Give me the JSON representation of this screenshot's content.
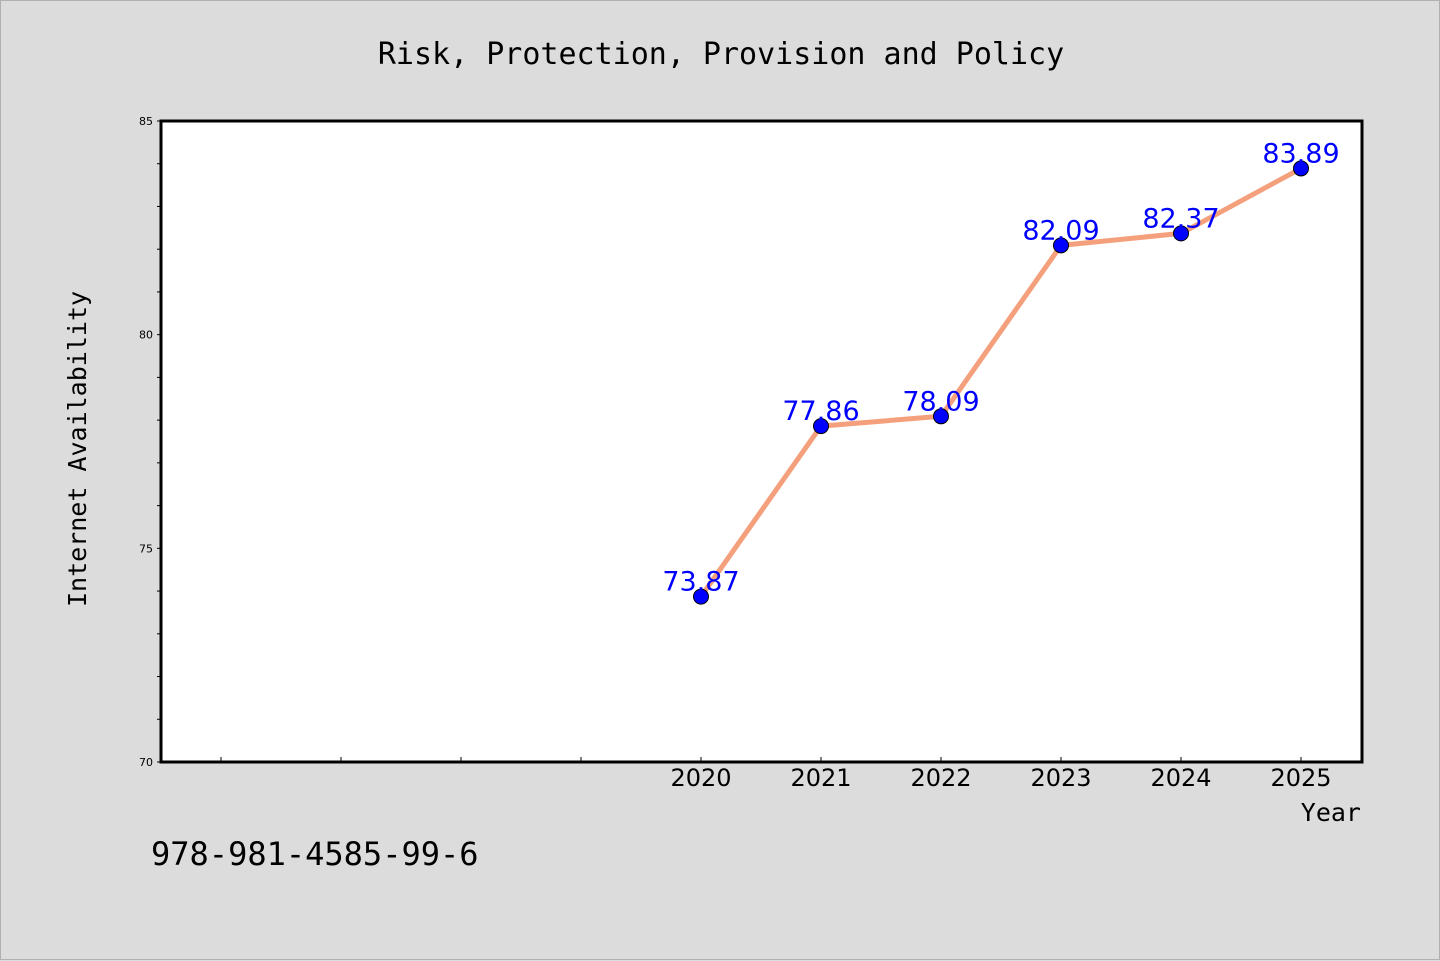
{
  "chart_data": {
    "type": "line",
    "title": "Risk, Protection, Provision and Policy",
    "xlabel": "Year",
    "ylabel": "Internet Availability",
    "categories": [
      "2020",
      "2021",
      "2022",
      "2023",
      "2024",
      "2025"
    ],
    "series": [
      {
        "values": [
          73.87,
          77.86,
          78.09,
          82.09,
          82.37,
          83.89
        ]
      }
    ],
    "data_labels": [
      "73.87",
      "77.86",
      "78.09",
      "82.09",
      "82.37",
      "83.89"
    ],
    "ylim": [
      70,
      85
    ],
    "y_ticks": [
      "70",
      "75",
      "80",
      "85"
    ],
    "grid": false,
    "legend": "none",
    "colors": {
      "line": "#f4a07c",
      "marker": "#0000ff",
      "label": "#0000ff",
      "plot_background": "#ffffff",
      "page_background": "#dcdcdc"
    }
  },
  "footer": {
    "isbn": "978-981-4585-99-6"
  }
}
